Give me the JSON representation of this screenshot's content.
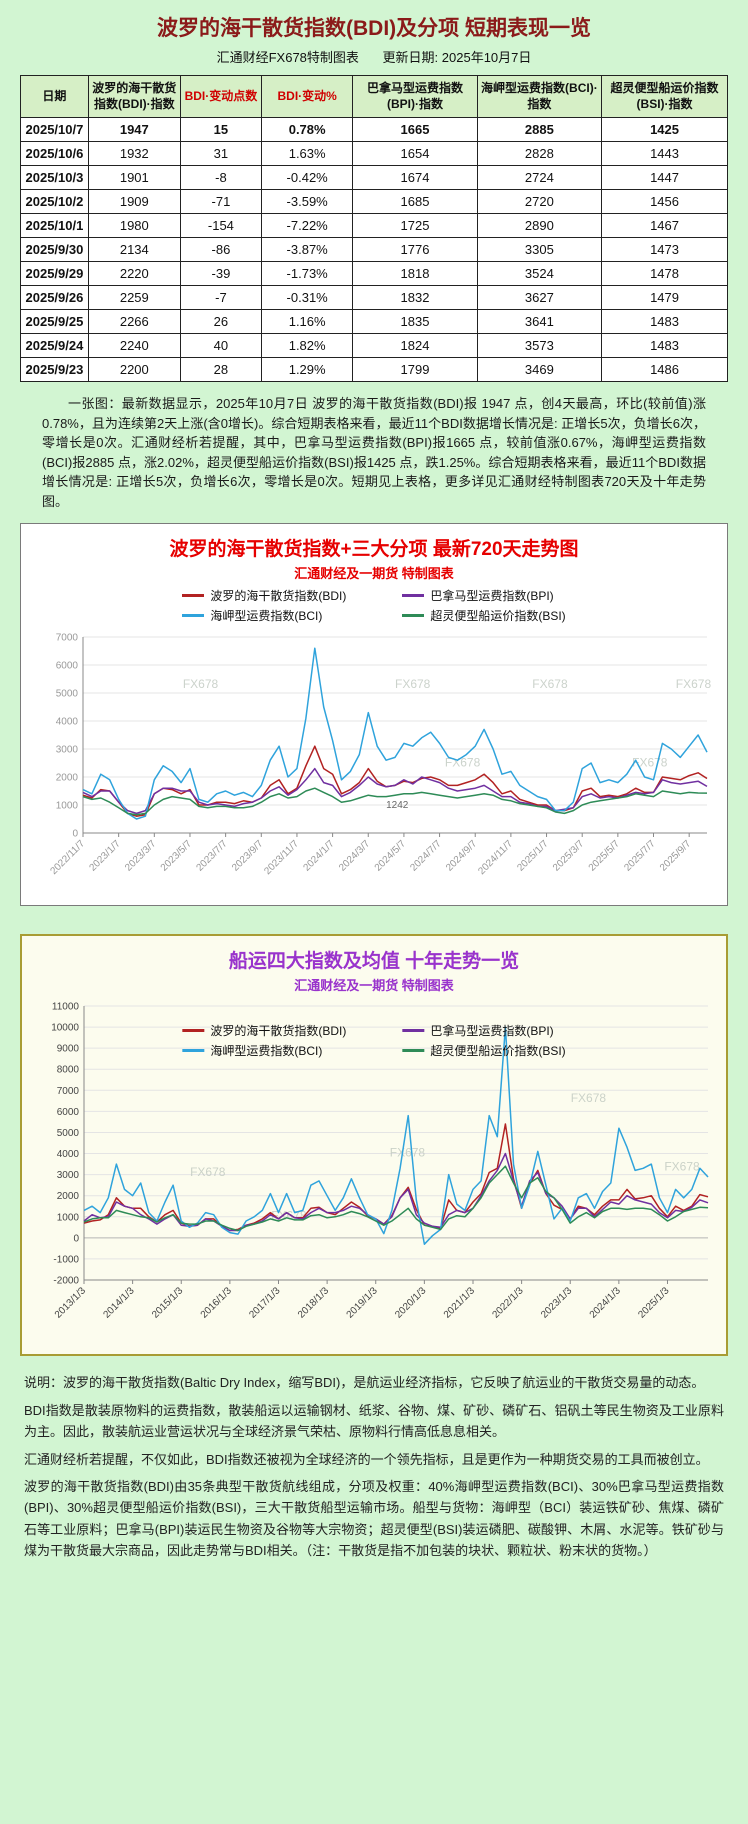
{
  "page": {
    "title": "波罗的海干散货指数(BDI)及分项 短期表现一览",
    "title_color": "#8b1a1a",
    "subtitle_brand": "汇通财经FX678特制图表",
    "subtitle_update": "更新日期: 2025年10月7日",
    "background_color": "#d2f5d2"
  },
  "table": {
    "columns": [
      "日期",
      "波罗的海干散货指数(BDI)·指数",
      "BDI·变动点数",
      "BDI·变动%",
      "巴拿马型运费指数(BPI)·指数",
      "海岬型运费指数(BCI)·指数",
      "超灵便型船运价指数(BSI)·指数"
    ],
    "red_columns": [
      2,
      3
    ],
    "rows": [
      [
        "2025/10/7",
        "1947",
        "15",
        "0.78%",
        "1665",
        "2885",
        "1425"
      ],
      [
        "2025/10/6",
        "1932",
        "31",
        "1.63%",
        "1654",
        "2828",
        "1443"
      ],
      [
        "2025/10/3",
        "1901",
        "-8",
        "-0.42%",
        "1674",
        "2724",
        "1447"
      ],
      [
        "2025/10/2",
        "1909",
        "-71",
        "-3.59%",
        "1685",
        "2720",
        "1456"
      ],
      [
        "2025/10/1",
        "1980",
        "-154",
        "-7.22%",
        "1725",
        "2890",
        "1467"
      ],
      [
        "2025/9/30",
        "2134",
        "-86",
        "-3.87%",
        "1776",
        "3305",
        "1473"
      ],
      [
        "2025/9/29",
        "2220",
        "-39",
        "-1.73%",
        "1818",
        "3524",
        "1478"
      ],
      [
        "2025/9/26",
        "2259",
        "-7",
        "-0.31%",
        "1832",
        "3627",
        "1479"
      ],
      [
        "2025/9/25",
        "2266",
        "26",
        "1.16%",
        "1835",
        "3641",
        "1483"
      ],
      [
        "2025/9/24",
        "2240",
        "40",
        "1.82%",
        "1824",
        "3573",
        "1483"
      ],
      [
        "2025/9/23",
        "2200",
        "28",
        "1.29%",
        "1799",
        "3469",
        "1486"
      ]
    ]
  },
  "summary": "一张图：最新数据显示，2025年10月7日 波罗的海干散货指数(BDI)报 1947 点，创4天最高，环比(较前值)涨0.78%，且为连续第2天上涨(含0增长)。综合短期表格来看，最近11个BDI数据增长情况是: 正增长5次，负增长6次，零增长是0次。汇通财经析若提醒，其中，巴拿马型运费指数(BPI)报1665 点，较前值涨0.67%，海岬型运费指数(BCI)报2885 点，涨2.02%，超灵便型船运价指数(BSI)报1425 点，跌1.25%。综合短期表格来看，最近11个BDI数据增长情况是: 正增长5次，负增长6次，零增长是0次。短期见上表格，更多详见汇通财经特制图表720天及十年走势图。",
  "chart_data": [
    {
      "type": "line",
      "title": "波罗的海干散货指数+三大分项 最新720天走势图",
      "subtitle": "汇通财经及一期货 特制图表",
      "title_color": "#e60000",
      "axis_color": "#999999",
      "ylim": [
        0,
        7000
      ],
      "ytick_step": 1000,
      "x_tick_every": 4,
      "x": [
        "2022/11/7",
        "2023/1/7",
        "2023/3/7",
        "2023/5/7",
        "2023/7/7",
        "2023/9/7",
        "2023/11/7",
        "2024/1/7",
        "2024/3/7",
        "2024/5/7",
        "2024/7/7",
        "2024/9/7",
        "2024/11/7",
        "2025/1/7",
        "2025/3/7",
        "2025/5/7",
        "2025/7/7",
        "2025/9/7"
      ],
      "watermark": "FX678",
      "watermarks": [
        [
          0.16,
          0.26
        ],
        [
          0.5,
          0.26
        ],
        [
          0.72,
          0.26
        ],
        [
          0.95,
          0.26
        ],
        [
          0.58,
          0.66
        ],
        [
          0.88,
          0.66
        ]
      ],
      "annotation": {
        "text": "1242",
        "index": 34,
        "value": 900
      },
      "legend_position": "top",
      "series": [
        {
          "name": "波罗的海干散货指数(BDI)",
          "short": "bdi",
          "color": "#b22222",
          "values": [
            1350,
            1250,
            1550,
            1500,
            1100,
            700,
            600,
            650,
            1400,
            1600,
            1550,
            1400,
            1550,
            1000,
            1000,
            1100,
            1100,
            1050,
            1150,
            1100,
            1250,
            1700,
            1900,
            1400,
            1600,
            2400,
            3100,
            2300,
            2100,
            1400,
            1550,
            1800,
            2300,
            1850,
            1650,
            1700,
            1850,
            1800,
            1950,
            2000,
            1900,
            1700,
            1700,
            1800,
            1900,
            2100,
            1800,
            1400,
            1500,
            1200,
            1100,
            1000,
            1000,
            800,
            800,
            900,
            1500,
            1600,
            1300,
            1350,
            1300,
            1400,
            1600,
            1450,
            1450,
            2000,
            1950,
            1900,
            2050,
            2150,
            1947
          ]
        },
        {
          "name": "巴拿马型运费指数(BPI)",
          "short": "bpi",
          "color": "#7030a0",
          "values": [
            1450,
            1300,
            1500,
            1500,
            1100,
            800,
            700,
            800,
            1400,
            1600,
            1600,
            1500,
            1500,
            1100,
            1000,
            1050,
            1000,
            950,
            1050,
            1100,
            1250,
            1500,
            1650,
            1350,
            1550,
            1900,
            2300,
            1800,
            1700,
            1300,
            1450,
            1700,
            2000,
            1750,
            1650,
            1700,
            1900,
            1750,
            2000,
            1900,
            1800,
            1600,
            1500,
            1550,
            1600,
            1700,
            1500,
            1300,
            1300,
            1100,
            1050,
            950,
            950,
            800,
            850,
            900,
            1300,
            1400,
            1250,
            1300,
            1250,
            1350,
            1450,
            1400,
            1450,
            1900,
            1800,
            1750,
            1800,
            1850,
            1665
          ]
        },
        {
          "name": "海岬型运费指数(BCI)",
          "short": "bci",
          "color": "#2fa3dc",
          "values": [
            1550,
            1400,
            2100,
            1900,
            1200,
            700,
            500,
            600,
            1900,
            2400,
            2200,
            1800,
            2300,
            1200,
            1100,
            1400,
            1500,
            1350,
            1450,
            1300,
            1700,
            2600,
            3100,
            2000,
            2300,
            4100,
            6600,
            4500,
            3300,
            1900,
            2200,
            2800,
            4300,
            3100,
            2600,
            2700,
            3200,
            3100,
            3400,
            3600,
            3200,
            2700,
            2600,
            2800,
            3100,
            3700,
            3000,
            2100,
            2200,
            1700,
            1500,
            1300,
            1200,
            800,
            800,
            1100,
            2300,
            2500,
            1800,
            1900,
            1800,
            2100,
            2600,
            2000,
            1900,
            3200,
            3000,
            2700,
            3100,
            3500,
            2885
          ]
        },
        {
          "name": "超灵便型船运价指数(BSI)",
          "short": "bsi",
          "color": "#2e8b57",
          "values": [
            1300,
            1200,
            1250,
            1100,
            900,
            700,
            650,
            700,
            1000,
            1200,
            1300,
            1250,
            1200,
            950,
            900,
            950,
            950,
            900,
            900,
            950,
            1100,
            1300,
            1400,
            1250,
            1300,
            1500,
            1600,
            1450,
            1300,
            1100,
            1150,
            1250,
            1350,
            1300,
            1300,
            1350,
            1400,
            1400,
            1450,
            1400,
            1350,
            1300,
            1250,
            1300,
            1350,
            1400,
            1350,
            1200,
            1150,
            1050,
            1000,
            950,
            900,
            750,
            700,
            800,
            1000,
            1100,
            1150,
            1200,
            1250,
            1300,
            1400,
            1350,
            1300,
            1500,
            1450,
            1400,
            1450,
            1430,
            1425
          ]
        }
      ]
    },
    {
      "type": "line",
      "title": "船运四大指数及均值 十年走势一览",
      "subtitle": "汇通财经及一期货 特制图表",
      "title_color": "#9933cc",
      "axis_color": "#444444",
      "ylim": [
        -2000,
        11000
      ],
      "ytick_step": 1000,
      "x_tick_every": 6,
      "bottom": 64,
      "x": [
        "2013/1/3",
        "2014/1/3",
        "2015/1/3",
        "2016/1/3",
        "2017/1/3",
        "2018/1/3",
        "2019/1/3",
        "2020/1/3",
        "2021/1/3",
        "2022/1/3",
        "2023/1/3",
        "2024/1/3",
        "2025/1/3"
      ],
      "watermark": "FX678",
      "watermarks": [
        [
          0.17,
          0.62
        ],
        [
          0.49,
          0.55
        ],
        [
          0.78,
          0.35
        ],
        [
          0.93,
          0.6
        ],
        [
          0.3,
          0.78
        ]
      ],
      "legend_position": "inside-top",
      "series": [
        {
          "name": "波罗的海干散货指数(BDI)",
          "short": "bdi",
          "color": "#b22222",
          "values": [
            700,
            800,
            850,
            1100,
            1900,
            1500,
            1400,
            1400,
            1000,
            750,
            1100,
            1300,
            700,
            560,
            600,
            900,
            900,
            550,
            350,
            400,
            600,
            700,
            900,
            1200,
            900,
            1200,
            950,
            950,
            1400,
            1450,
            1200,
            1100,
            1400,
            1700,
            1450,
            1050,
            900,
            650,
            1050,
            1900,
            2400,
            1350,
            600,
            550,
            450,
            1800,
            1300,
            1200,
            1700,
            2100,
            3100,
            3300,
            5400,
            2800,
            1400,
            2550,
            3200,
            2100,
            1550,
            1350,
            900,
            1500,
            1400,
            1100,
            1500,
            1800,
            1800,
            2300,
            1850,
            1900,
            2000,
            1400,
            1000,
            1500,
            1300,
            1500,
            2050,
            1947
          ]
        },
        {
          "name": "巴拿马型运费指数(BPI)",
          "short": "bpi",
          "color": "#7030a0",
          "values": [
            800,
            1100,
            950,
            1000,
            1700,
            1500,
            1400,
            1100,
            900,
            650,
            900,
            1100,
            600,
            550,
            600,
            900,
            800,
            550,
            350,
            350,
            600,
            650,
            800,
            1100,
            900,
            1200,
            950,
            900,
            1200,
            1400,
            1200,
            1200,
            1300,
            1500,
            1400,
            1100,
            900,
            650,
            1000,
            1900,
            2300,
            1100,
            700,
            550,
            500,
            1100,
            1300,
            1200,
            1400,
            2000,
            2700,
            3200,
            4000,
            2700,
            1500,
            2700,
            3100,
            2100,
            1900,
            1500,
            900,
            1400,
            1400,
            1000,
            1350,
            1700,
            1600,
            2000,
            1800,
            1700,
            1600,
            1200,
            950,
            1300,
            1250,
            1450,
            1800,
            1665
          ]
        },
        {
          "name": "海岬型运费指数(BCI)",
          "short": "bci",
          "color": "#2fa3dc",
          "values": [
            1300,
            1500,
            1200,
            1900,
            3500,
            2300,
            2000,
            2600,
            1200,
            800,
            1700,
            2500,
            800,
            500,
            700,
            1200,
            1100,
            500,
            250,
            180,
            800,
            1000,
            1300,
            2100,
            1200,
            2100,
            1200,
            1300,
            2500,
            2700,
            2000,
            1300,
            1900,
            2800,
            1900,
            1100,
            900,
            200,
            1300,
            3300,
            5800,
            1800,
            -300,
            100,
            400,
            3000,
            1600,
            1300,
            2300,
            2700,
            5800,
            4800,
            10000,
            3500,
            1400,
            2500,
            4100,
            2500,
            900,
            1400,
            800,
            1900,
            2100,
            1400,
            2200,
            2600,
            5200,
            4300,
            3200,
            3300,
            3500,
            1900,
            1200,
            2300,
            1900,
            2300,
            3300,
            2885
          ]
        },
        {
          "name": "超灵便型船运价指数(BSI)",
          "short": "bsi",
          "color": "#2e8b57",
          "values": [
            750,
            900,
            950,
            950,
            1300,
            1200,
            1100,
            1000,
            950,
            750,
            950,
            1100,
            700,
            650,
            650,
            800,
            800,
            600,
            450,
            350,
            550,
            650,
            750,
            900,
            800,
            950,
            850,
            850,
            1050,
            1100,
            950,
            1000,
            1100,
            1250,
            1150,
            1000,
            800,
            600,
            800,
            1100,
            1400,
            900,
            600,
            500,
            400,
            900,
            1050,
            1000,
            1400,
            1900,
            2600,
            3000,
            3400,
            2600,
            1900,
            2600,
            2850,
            2200,
            1900,
            1350,
            700,
            1000,
            1200,
            950,
            1250,
            1400,
            1400,
            1350,
            1400,
            1400,
            1350,
            1100,
            800,
            1000,
            1250,
            1350,
            1450,
            1425
          ]
        }
      ]
    }
  ],
  "notes": [
    "说明：波罗的海干散货指数(Baltic Dry Index，缩写BDI)，是航运业经济指标，它反映了航运业的干散货交易量的动态。",
    "BDI指数是散装原物料的运费指数，散装船运以运输钢材、纸浆、谷物、煤、矿砂、磷矿石、铝矾土等民生物资及工业原料为主。因此，散装航运业营运状况与全球经济景气荣枯、原物料行情高低息息相关。",
    "汇通财经析若提醒，不仅如此，BDI指数还被视为全球经济的一个领先指标，且是更作为一种期货交易的工具而被创立。",
    "波罗的海干散货指数(BDI)由35条典型干散货航线组成，分项及权重：40%海岬型运费指数(BCI)、30%巴拿马型运费指数(BPI)、30%超灵便型船运价指数(BSI)，三大干散货船型运输市场。船型与货物：海岬型（BCI）装运铁矿砂、焦煤、磷矿石等工业原料；巴拿马(BPI)装运民生物资及谷物等大宗物资；超灵便型(BSI)装运磷肥、碳酸钾、木屑、水泥等。铁矿砂与煤为干散货最大宗商品，因此走势常与BDI相关。（注：干散货是指不加包装的块状、颗粒状、粉末状的货物。）"
  ]
}
